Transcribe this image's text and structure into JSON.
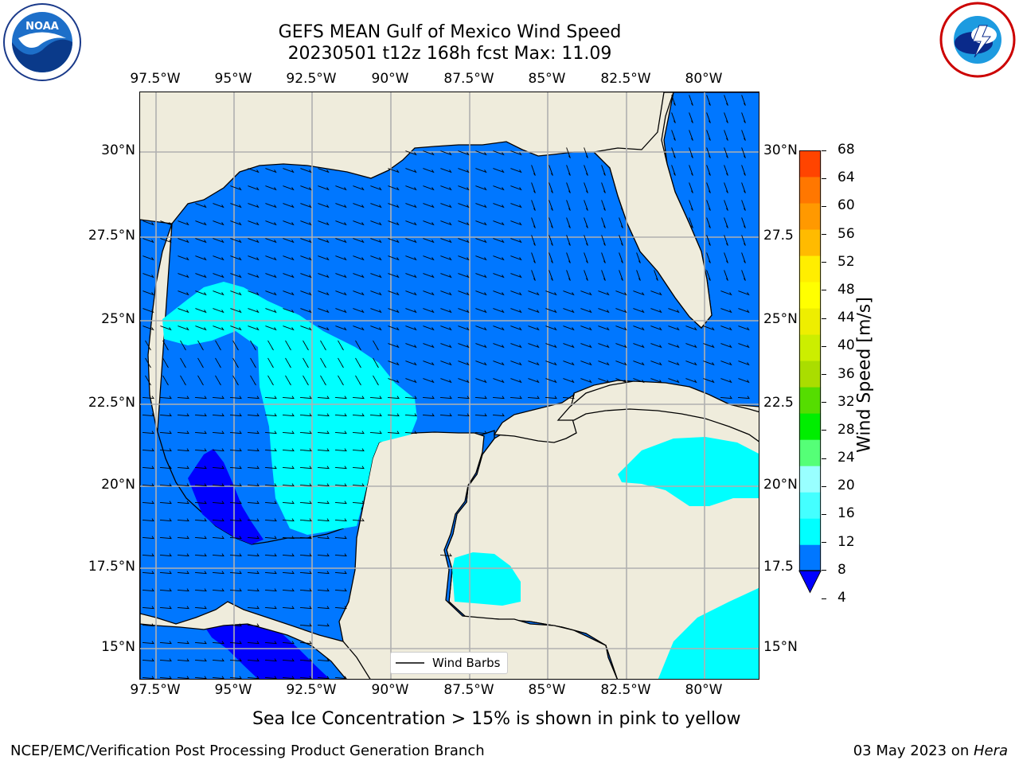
{
  "header": {
    "title_line1": "GEFS MEAN Gulf of Mexico Wind Speed",
    "title_line2": "20230501 t12z 168h fcst   Max: 11.09"
  },
  "logos": {
    "left": "noaa-logo",
    "right": "nws-logo"
  },
  "axes": {
    "lon_labels": [
      "97.5°W",
      "95°W",
      "92.5°W",
      "90°W",
      "87.5°W",
      "85°W",
      "82.5°W",
      "80°W"
    ],
    "lat_labels": [
      "30°N",
      "27.5°N",
      "25°N",
      "22.5°N",
      "20°N",
      "17.5°N",
      "15°N"
    ],
    "lat_labels_right": [
      "30°N",
      "27.5",
      "25°N",
      "22.5",
      "20°N",
      "17.5",
      "15°N"
    ]
  },
  "map": {
    "lon_range": [
      -98.0,
      -79.2
    ],
    "lat_range": [
      14.0,
      31.8
    ],
    "land_color": "#efecdc",
    "legend_label": "Wind Barbs"
  },
  "colorbar": {
    "label": "Wind Speed [m/s]",
    "ticks": [
      "4",
      "8",
      "12",
      "16",
      "20",
      "24",
      "28",
      "32",
      "36",
      "40",
      "44",
      "48",
      "52",
      "56",
      "60",
      "64",
      "68"
    ],
    "under_color": "#0000ff",
    "colors": [
      "#0077ff",
      "#00ffff",
      "#44ffff",
      "#99ffff",
      "#55ff77",
      "#00ee00",
      "#55dd00",
      "#aadd00",
      "#ccee00",
      "#eeee00",
      "#ffff00",
      "#ffee00",
      "#ffbb00",
      "#ff9900",
      "#ff7700",
      "#ff4400",
      "#ff0000"
    ]
  },
  "caption": "Sea Ice Concentration > 15% is shown in pink to yellow",
  "footer": {
    "left": "NCEP/EMC/Verification Post Processing Product Generation Branch",
    "right_prefix": "03 May 2023 on ",
    "right_machine": "Hera"
  }
}
